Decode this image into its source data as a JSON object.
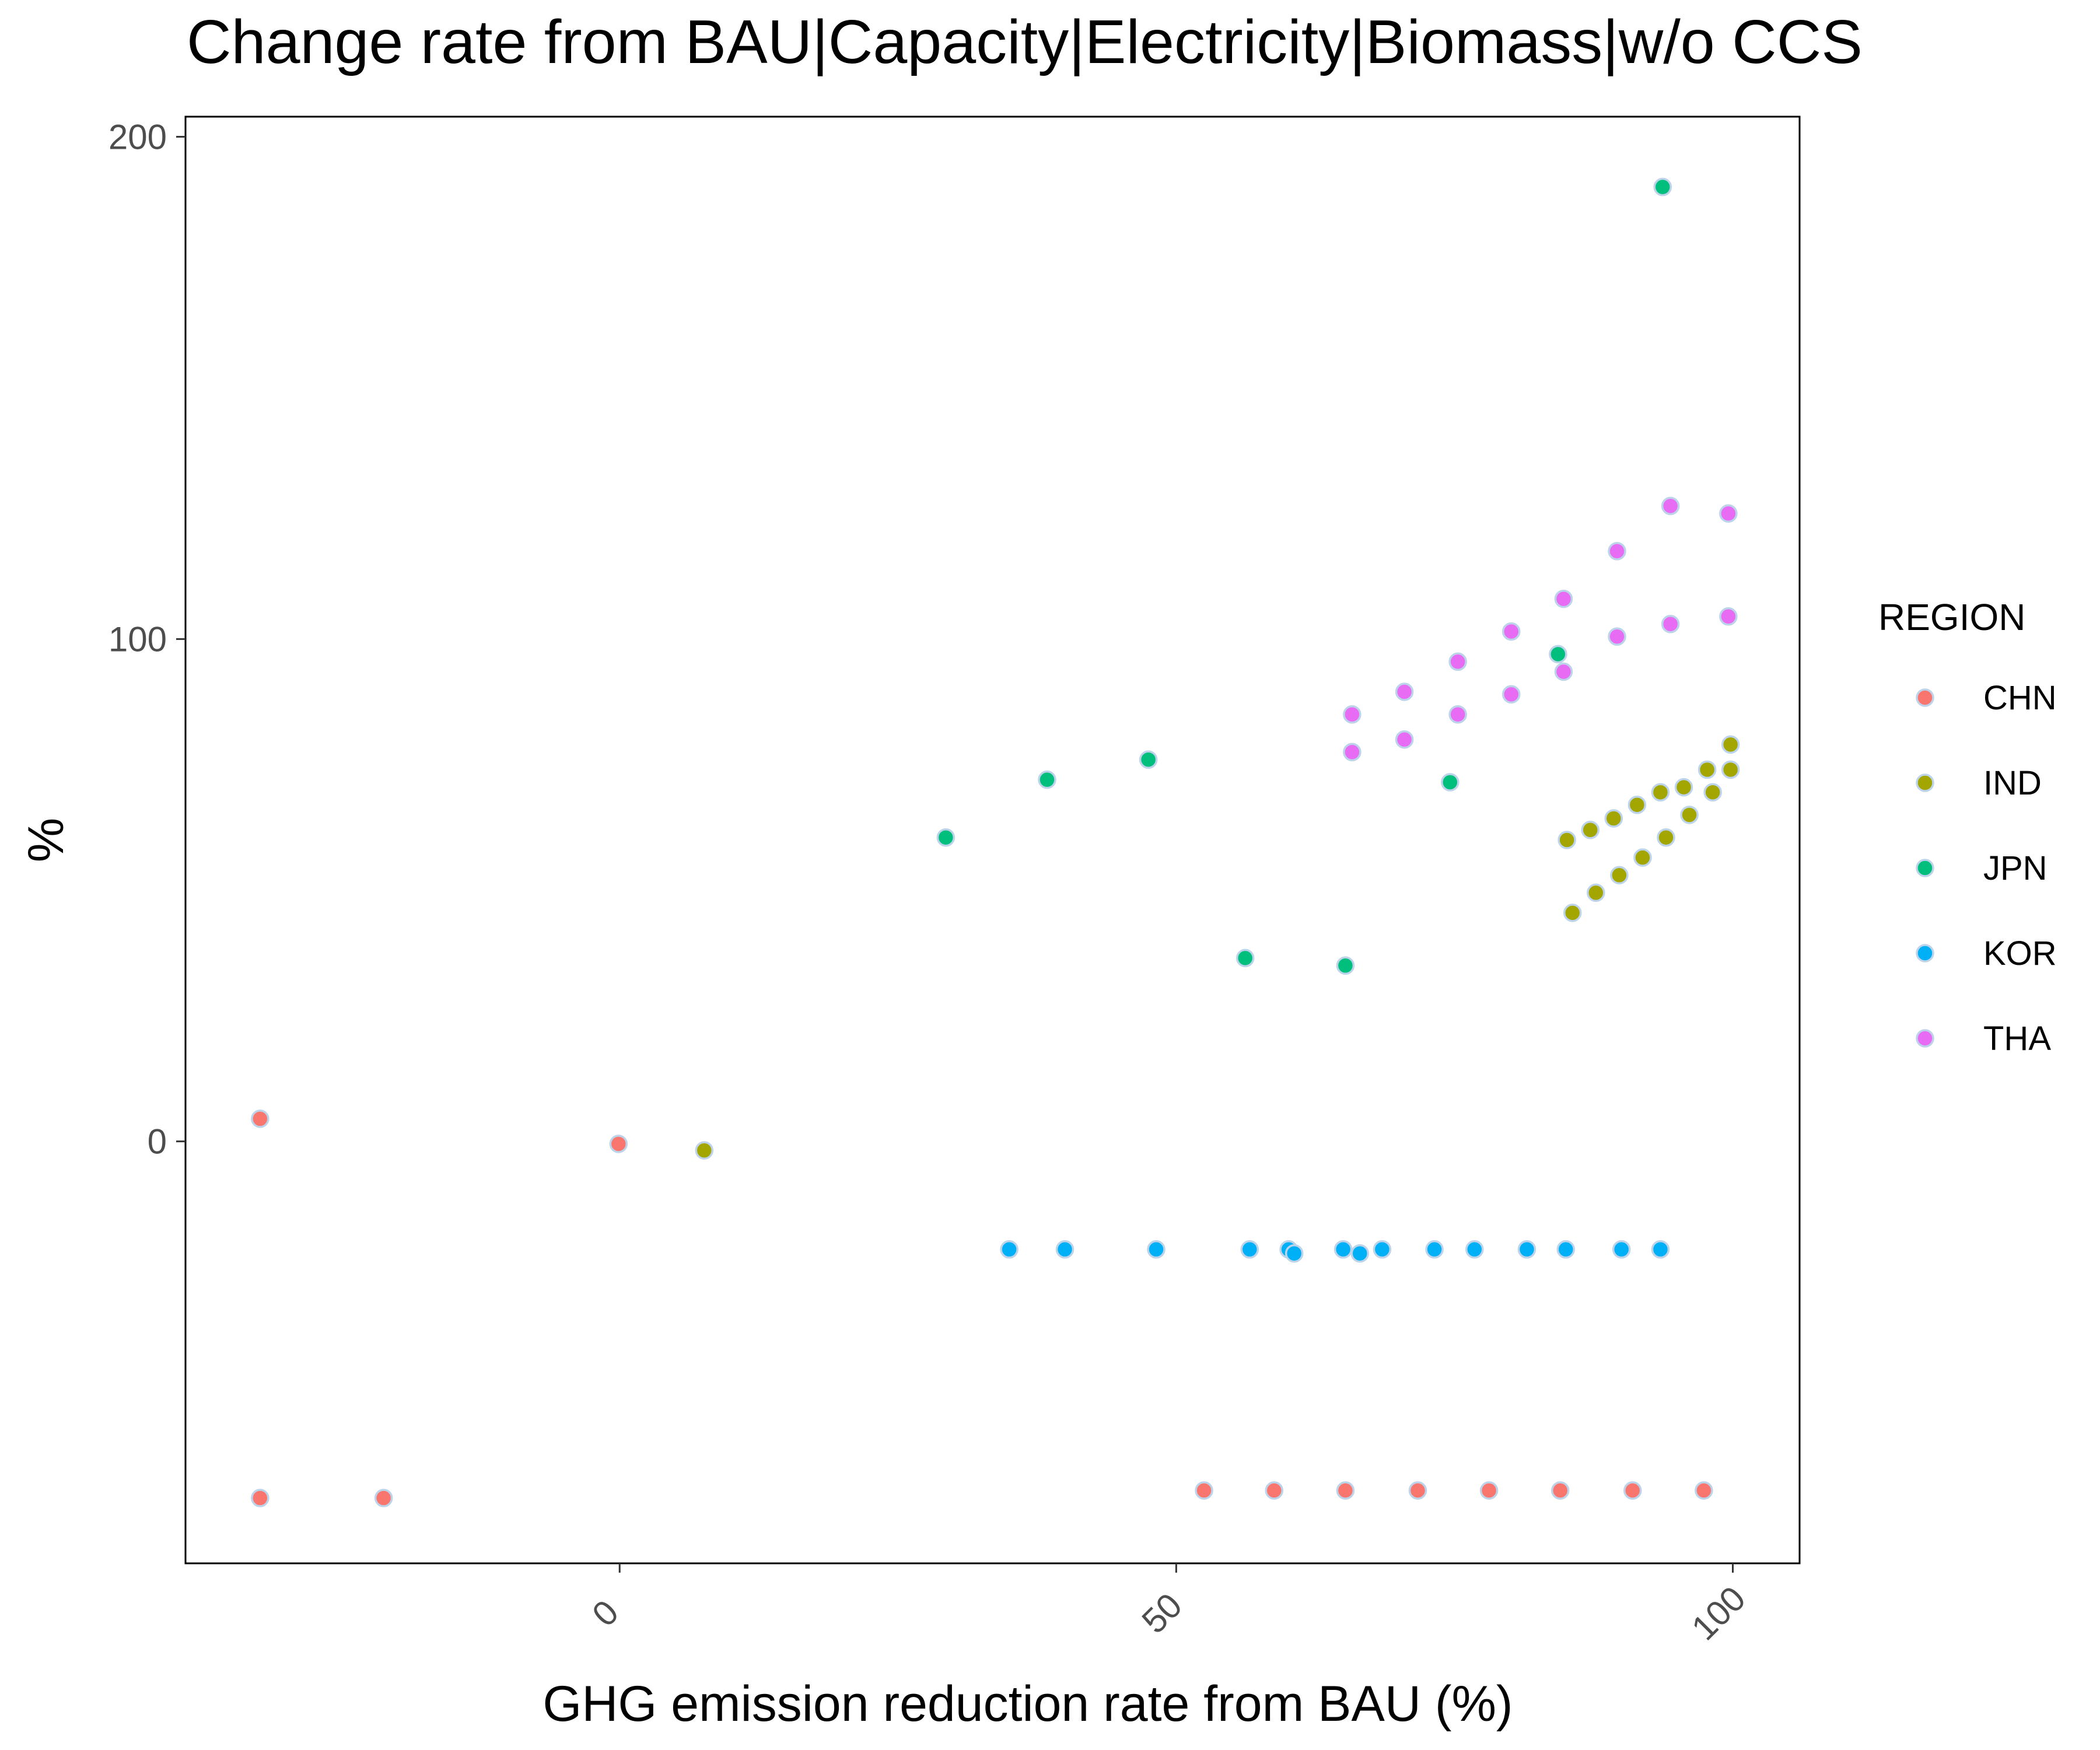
{
  "chart_data": {
    "type": "scatter",
    "title": "Change rate from BAU|Capacity|Electricity|Biomass|w/o CCS",
    "xlabel": "GHG emission reduction rate from BAU (%)",
    "ylabel": "%",
    "xlim": [
      -39,
      106
    ],
    "ylim": [
      -84,
      204
    ],
    "x_ticks": [
      0,
      50,
      100
    ],
    "y_ticks": [
      0,
      100,
      200
    ],
    "x_tick_labels": [
      "0",
      "50",
      "100"
    ],
    "y_tick_labels": [
      "0",
      "100",
      "200"
    ],
    "grid": false,
    "legend": {
      "title": "REGION",
      "position": "right"
    },
    "series": [
      {
        "name": "CHN",
        "color": "#F8766D",
        "points": [
          [
            -32.3,
            4.5
          ],
          [
            -32.3,
            -71
          ],
          [
            -21.2,
            -71
          ],
          [
            -0.1,
            -0.5
          ],
          [
            52.5,
            -69.5
          ],
          [
            58.8,
            -69.5
          ],
          [
            65.2,
            -69.5
          ],
          [
            71.7,
            -69.5
          ],
          [
            78.1,
            -69.5
          ],
          [
            84.5,
            -69.5
          ],
          [
            91,
            -69.5
          ],
          [
            97.4,
            -69.5
          ]
        ]
      },
      {
        "name": "IND",
        "color": "#A3A500",
        "points": [
          [
            7.6,
            -1.8
          ],
          [
            85.1,
            60
          ],
          [
            87.2,
            62
          ],
          [
            89.3,
            64.3
          ],
          [
            91.4,
            67
          ],
          [
            93.5,
            69.5
          ],
          [
            95.6,
            70.5
          ],
          [
            97.7,
            74
          ],
          [
            99.8,
            79
          ],
          [
            85.6,
            45.5
          ],
          [
            87.7,
            49.5
          ],
          [
            89.8,
            53
          ],
          [
            91.9,
            56.5
          ],
          [
            94,
            60.5
          ],
          [
            96.1,
            65
          ],
          [
            98.2,
            69.5
          ],
          [
            99.8,
            74
          ]
        ]
      },
      {
        "name": "JPN",
        "color": "#00BF7D",
        "points": [
          [
            29.3,
            60.5
          ],
          [
            38.4,
            72
          ],
          [
            47.5,
            76
          ],
          [
            56.2,
            36.5
          ],
          [
            65.2,
            35
          ],
          [
            74.6,
            71.5
          ],
          [
            84.3,
            97
          ],
          [
            93.7,
            190
          ]
        ]
      },
      {
        "name": "KOR",
        "color": "#00B0F6",
        "points": [
          [
            35,
            -21.5
          ],
          [
            40,
            -21.5
          ],
          [
            48.2,
            -21.5
          ],
          [
            56.6,
            -21.5
          ],
          [
            60.1,
            -21.5
          ],
          [
            60.6,
            -22.3
          ],
          [
            65,
            -21.5
          ],
          [
            66.5,
            -22.3
          ],
          [
            68.5,
            -21.5
          ],
          [
            73.2,
            -21.5
          ],
          [
            76.8,
            -21.5
          ],
          [
            81.5,
            -21.5
          ],
          [
            85,
            -21.5
          ],
          [
            90,
            -21.5
          ],
          [
            93.5,
            -21.5
          ]
        ]
      },
      {
        "name": "THA",
        "color": "#E76BF3",
        "points": [
          [
            65.8,
            85
          ],
          [
            65.8,
            77.5
          ],
          [
            70.5,
            89.5
          ],
          [
            70.5,
            80
          ],
          [
            75.3,
            95.5
          ],
          [
            75.3,
            85
          ],
          [
            80.1,
            101.5
          ],
          [
            80.1,
            89
          ],
          [
            84.8,
            108
          ],
          [
            84.8,
            93.5
          ],
          [
            89.6,
            117.5
          ],
          [
            89.6,
            100.5
          ],
          [
            94.4,
            126.5
          ],
          [
            94.4,
            103
          ],
          [
            99.6,
            125
          ],
          [
            99.6,
            104.5
          ]
        ]
      }
    ]
  }
}
